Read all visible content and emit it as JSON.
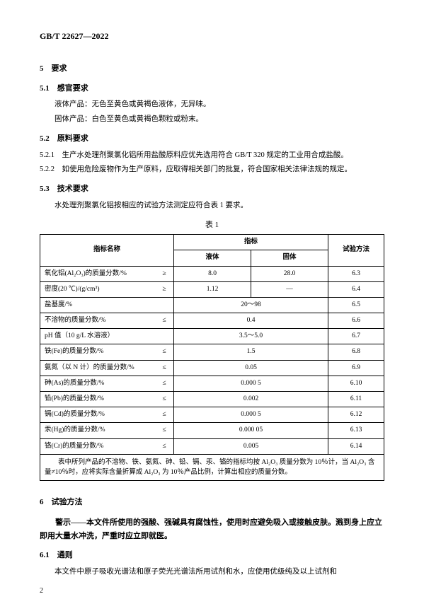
{
  "header": "GB/T 22627—2022",
  "s5": {
    "num": "5",
    "title": "要求"
  },
  "s51": {
    "num": "5.1",
    "title": "感官要求"
  },
  "p_liquid": "液体产品：无色至黄色或黄褐色液体，无异味。",
  "p_solid": "固体产品：白色至黄色或黄褐色颗粒或粉末。",
  "s52": {
    "num": "5.2",
    "title": "原料要求"
  },
  "c521": "5.2.1　生产水处理剂聚氯化铝所用盐酸原料应优先选用符合 GB/T 320 规定的工业用合成盐酸。",
  "c522": "5.2.2　如使用危险废物作为生产原料，应取得相关部门的批复，符合国家相关法律法规的规定。",
  "s53": {
    "num": "5.3",
    "title": "技术要求"
  },
  "p53": "水处理剂聚氯化铝按相应的试验方法测定应符合表 1 要求。",
  "table_caption": "表 1",
  "thead": {
    "name": "指标名称",
    "zhibiao": "指标",
    "liquid": "液体",
    "solid": "固体",
    "method": "试验方法"
  },
  "rows": [
    {
      "name": "氧化铝(Al₂O₃)的质量分数/%",
      "op": "≥",
      "liquid": "8.0",
      "solid": "28.0",
      "method": "6.3"
    },
    {
      "name": "密度(20 ℃)/(g/cm³)",
      "op": "≥",
      "liquid": "1.12",
      "solid": "—",
      "method": "6.4"
    },
    {
      "name": "盐基度/%",
      "op": "",
      "span": "20～98",
      "method": "6.5"
    },
    {
      "name": "不溶物的质量分数/%",
      "op": "≤",
      "span": "0.4",
      "method": "6.6"
    },
    {
      "name": "pH 值（10 g/L 水溶液）",
      "op": "",
      "span": "3.5～5.0",
      "method": "6.7"
    },
    {
      "name": "铁(Fe)的质量分数/%",
      "op": "≤",
      "span": "1.5",
      "method": "6.8"
    },
    {
      "name": "氨氮（以 N 计）的质量分数/%",
      "op": "≤",
      "span": "0.05",
      "method": "6.9"
    },
    {
      "name": "砷(As)的质量分数/%",
      "op": "≤",
      "span": "0.000 5",
      "method": "6.10"
    },
    {
      "name": "铅(Pb)的质量分数/%",
      "op": "≤",
      "span": "0.002",
      "method": "6.11"
    },
    {
      "name": "镉(Cd)的质量分数/%",
      "op": "≤",
      "span": "0.000 5",
      "method": "6.12"
    },
    {
      "name": "汞(Hg)的质量分数/%",
      "op": "≤",
      "span": "0.000 05",
      "method": "6.13"
    },
    {
      "name": "铬(Cr)的质量分数/%",
      "op": "≤",
      "span": "0.005",
      "method": "6.14"
    }
  ],
  "footnote": "　　表中所列产品的不溶物、铁、氨氮、砷、铅、镉、汞、铬的指标均按 Al₂O₃ 质量分数为 10％计，当 Al₂O₃ 含量≠10％时，应将实际含量折算成 Al₂O₃ 为 10％产品比例，计算出相应的质量分数。",
  "s6": {
    "num": "6",
    "title": "试验方法"
  },
  "warning": "警示——本文件所使用的强酸、强碱具有腐蚀性，使用时应避免吸入或接触皮肤。溅到身上应立即用大量水冲洗，严重时应立即就医。",
  "s61": {
    "num": "6.1",
    "title": "通则"
  },
  "p61": "本文件中原子吸收光谱法和原子荧光光谱法所用试剂和水，应使用优级纯及以上试剂和",
  "pagenum": "2"
}
